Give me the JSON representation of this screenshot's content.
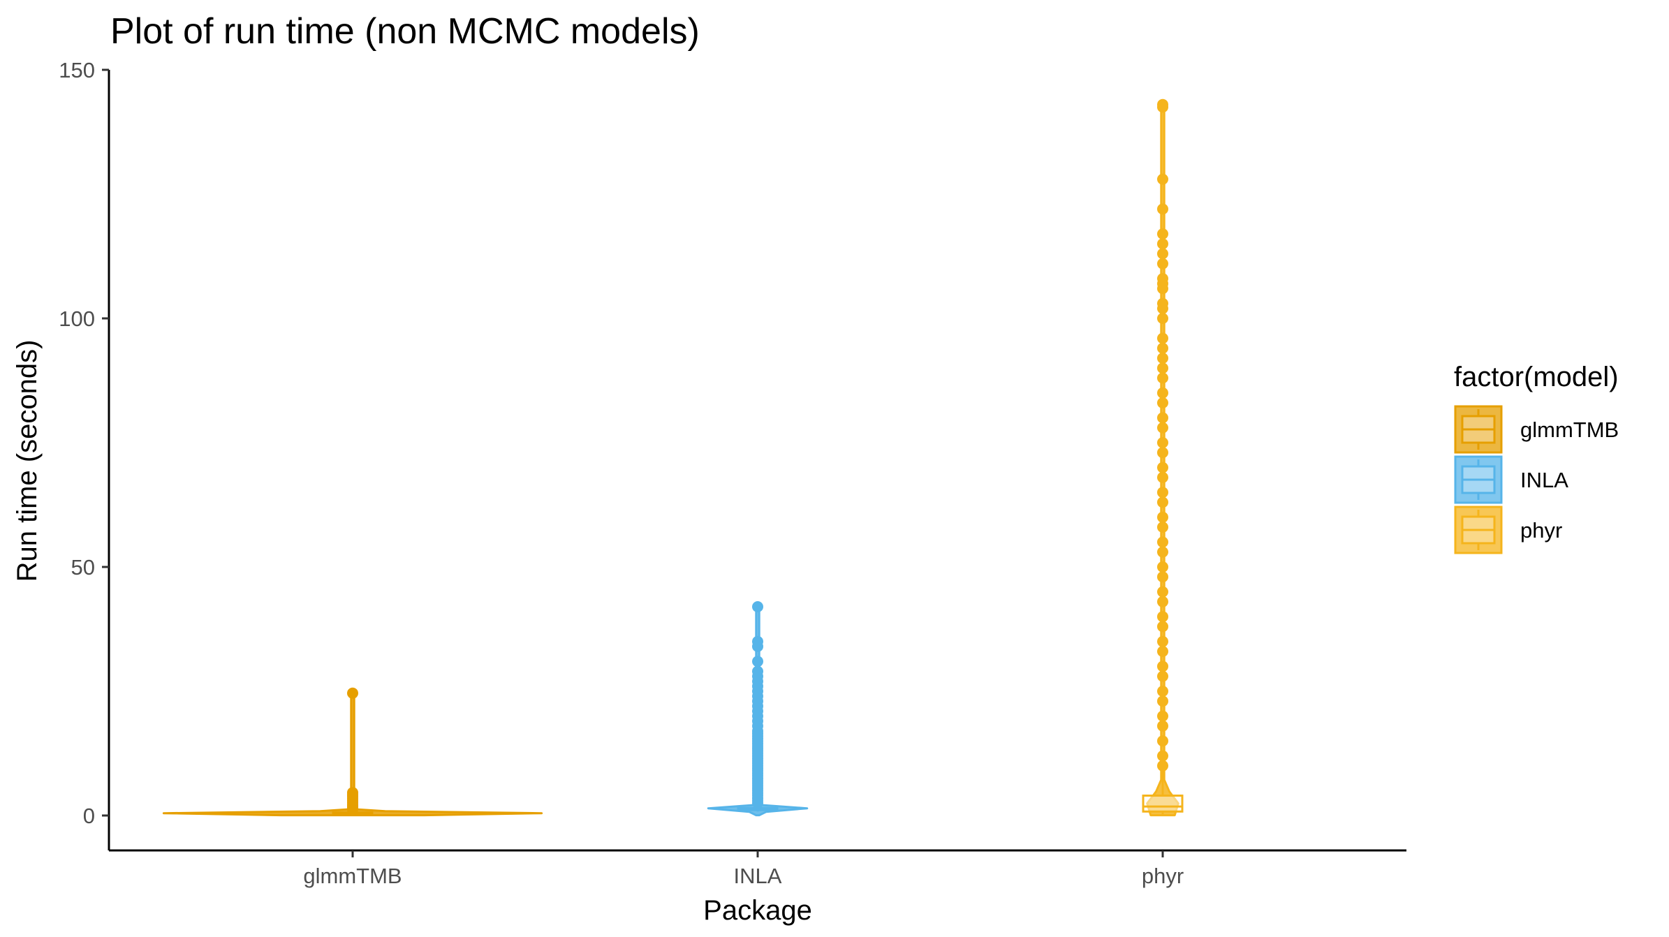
{
  "chart_data": {
    "type": "violin+boxplot",
    "title": "Plot of run time (non MCMC models)",
    "xlabel": "Package",
    "ylabel": "Run time (seconds)",
    "ylim": [
      -5,
      150
    ],
    "y_ticks": [
      0,
      50,
      100,
      150
    ],
    "categories": [
      "glmmTMB",
      "INLA",
      "phyr"
    ],
    "grid": false,
    "legend": {
      "title": "factor(model)",
      "position": "right",
      "entries": [
        {
          "label": "glmmTMB",
          "color": "#E69F00"
        },
        {
          "label": "INLA",
          "color": "#56B4E9"
        },
        {
          "label": "phyr",
          "color": "#F5B41C"
        }
      ]
    },
    "series": [
      {
        "name": "glmmTMB",
        "color": "#E69F00",
        "box": {
          "q1": 0.3,
          "median": 0.4,
          "q3": 0.6,
          "whisker_low": 0.1,
          "whisker_high": 1.0
        },
        "outliers": [
          1.2,
          1.5,
          1.8,
          2.0,
          2.2,
          2.6,
          3.0,
          3.4,
          3.8,
          4.2,
          4.6,
          24.6
        ],
        "violin_max_halfwidth": 0.48
      },
      {
        "name": "INLA",
        "color": "#56B4E9",
        "box": {
          "q1": 1.1,
          "median": 1.3,
          "q3": 1.5,
          "whisker_low": 0.8,
          "whisker_high": 2.0
        },
        "outliers": [
          2.5,
          3,
          3.5,
          4,
          4.5,
          5,
          5.5,
          6,
          6.5,
          7,
          7.5,
          8,
          8.5,
          9,
          9.5,
          10,
          10.5,
          11,
          11.5,
          12,
          12.5,
          13,
          13.5,
          14,
          14.5,
          15,
          15.5,
          16,
          16.5,
          17,
          18,
          19,
          20,
          21,
          22,
          23,
          24,
          25,
          26,
          27,
          28,
          29,
          31,
          34,
          35,
          42
        ],
        "violin_max_halfwidth": 0.14
      },
      {
        "name": "phyr",
        "color": "#F5B41C",
        "box": {
          "q1": 0.8,
          "median": 1.8,
          "q3": 4.0,
          "whisker_low": 0.1,
          "whisker_high": 9.5
        },
        "outliers": [
          10,
          12,
          15,
          18,
          20,
          23,
          25,
          28,
          30,
          33,
          35,
          38,
          40,
          43,
          45,
          48,
          50,
          53,
          55,
          58,
          60,
          63,
          65,
          68,
          70,
          73,
          75,
          78,
          80,
          83,
          85,
          88,
          90,
          92,
          94,
          96,
          100,
          102,
          103,
          106,
          107,
          108,
          111,
          113,
          115,
          117,
          122,
          128,
          142.5,
          143
        ],
        "violin_max_halfwidth": 0.04
      }
    ]
  }
}
